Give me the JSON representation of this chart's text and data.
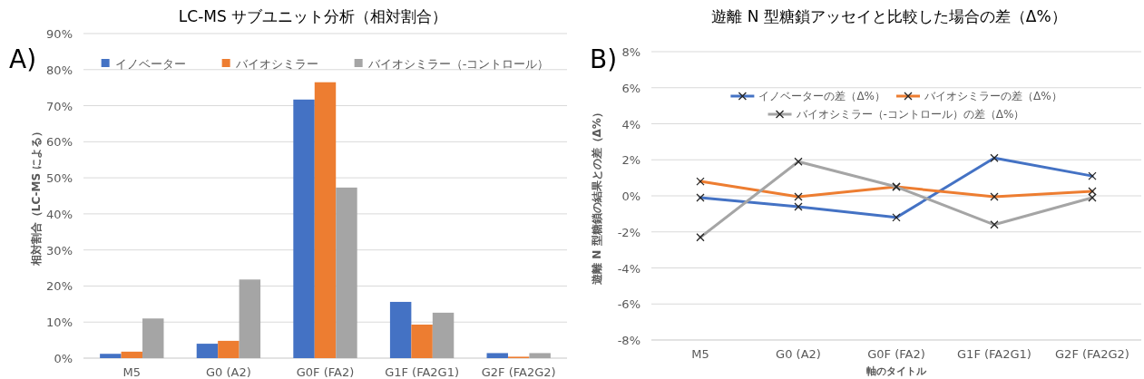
{
  "chart_data": [
    {
      "type": "bar",
      "title": "LC-MS サブユニット分析（相対割合）",
      "ylabel": "相対割合（LC-MS による）",
      "annotations": [
        "A)"
      ],
      "categories": [
        "M5",
        "G0 (A2)",
        "G0F (FA2)",
        "G1F (FA2G1)",
        "G2F (FA2G2)"
      ],
      "series": [
        {
          "name": "イノベーター",
          "color": "#4472c4",
          "values": [
            1.2,
            4.0,
            71.7,
            15.6,
            1.4
          ]
        },
        {
          "name": "バイオシミラー",
          "color": "#ed7d31",
          "values": [
            1.8,
            4.8,
            76.5,
            9.3,
            0.4
          ]
        },
        {
          "name": "バイオシミラー（-コントロール）",
          "color": "#a5a5a5",
          "values": [
            11.0,
            21.8,
            47.3,
            12.6,
            1.4
          ]
        }
      ],
      "ylim": [
        0,
        90
      ],
      "yticks": [
        {
          "value": 0,
          "label": "0%"
        },
        {
          "value": 10,
          "label": "10%"
        },
        {
          "value": 20,
          "label": "20%"
        },
        {
          "value": 30,
          "label": "30%"
        },
        {
          "value": 40,
          "label": "40%"
        },
        {
          "value": 50,
          "label": "50%"
        },
        {
          "value": 60,
          "label": "60%"
        },
        {
          "value": 70,
          "label": "70%"
        },
        {
          "value": 80,
          "label": "80%"
        },
        {
          "value": 90,
          "label": "90%"
        }
      ],
      "grid": "y",
      "legend": "top"
    },
    {
      "type": "line",
      "title": "遊離 N 型糖鎖アッセイと比較した場合の差（Δ%）",
      "xlabel": "軸のタイトル",
      "ylabel": "遊離 N 型糖鎖の結果との差（Δ%）",
      "annotations": [
        "B)"
      ],
      "categories": [
        "M5",
        "G0 (A2)",
        "G0F (FA2)",
        "G1F (FA2G1)",
        "G2F (FA2G2)"
      ],
      "series": [
        {
          "name": "イノベーターの差（Δ%）",
          "color": "#4472c4",
          "values": [
            -0.1,
            -0.6,
            -1.2,
            2.1,
            1.1
          ]
        },
        {
          "name": "バイオシミラーの差（Δ%）",
          "color": "#ed7d31",
          "values": [
            0.8,
            -0.05,
            0.5,
            -0.05,
            0.25
          ]
        },
        {
          "name": "バイオシミラー（-コントロール）の差（Δ%）",
          "color": "#a5a5a5",
          "values": [
            -2.3,
            1.9,
            0.5,
            -1.6,
            -0.1
          ]
        }
      ],
      "ylim": [
        -8,
        8
      ],
      "yticks": [
        {
          "value": -8,
          "label": "-8%"
        },
        {
          "value": -6,
          "label": "-6%"
        },
        {
          "value": -4,
          "label": "-4%"
        },
        {
          "value": -2,
          "label": "-2%"
        },
        {
          "value": 0,
          "label": "0%"
        },
        {
          "value": 2,
          "label": "2%"
        },
        {
          "value": 4,
          "label": "4%"
        },
        {
          "value": 6,
          "label": "6%"
        },
        {
          "value": 8,
          "label": "8%"
        }
      ],
      "grid": "y",
      "legend": "top",
      "marker": "cross"
    }
  ]
}
